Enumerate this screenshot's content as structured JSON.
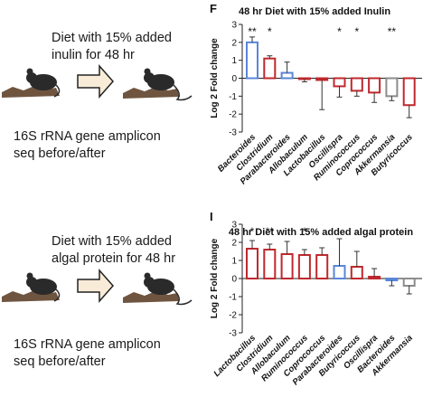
{
  "top": {
    "diet_lines": [
      "Diet with 15% added",
      "inulin for 48 hr"
    ],
    "seq_lines": [
      "16S rRNA gene amplicon",
      "seq before/after"
    ]
  },
  "bottom": {
    "diet_lines": [
      "Diet with 15% added",
      "algal protein for 48 hr"
    ],
    "seq_lines": [
      "16S rRNA gene amplicon",
      "seq before/after"
    ]
  },
  "colors": {
    "red": "#c0282d",
    "blue": "#5b86d8",
    "gray": "#8c8c8c",
    "arrow_fill": "#f8ecd8",
    "mouse": "#2a2a2a",
    "bedding": "#6f5540"
  },
  "chart_data": [
    {
      "panel_letter": "F",
      "type": "bar",
      "title": "48 hr Diet with 15% added Inulin",
      "ylabel": "Log 2 Fold change",
      "ylim": [
        -3,
        3
      ],
      "yticks": [
        -3,
        -2,
        -1,
        0,
        1,
        2,
        3
      ],
      "categories": [
        "Bacteroides",
        "Clostridium",
        "Parabacteroides",
        "Allobaculum",
        "Lactobacillus",
        "Oscillispra",
        "Ruminococcus",
        "Coprococcus",
        "Akkermansia",
        "Butyricoccus"
      ],
      "values": [
        2.0,
        1.1,
        0.3,
        -0.05,
        -0.1,
        -0.45,
        -0.7,
        -0.8,
        -1.0,
        -1.5
      ],
      "errors": [
        0.3,
        0.15,
        0.6,
        0.15,
        1.65,
        0.6,
        0.3,
        0.55,
        0.25,
        0.7
      ],
      "bar_colors": [
        "blue",
        "red",
        "blue",
        "red",
        "red",
        "red",
        "red",
        "red",
        "gray",
        "red"
      ],
      "significance": [
        "**",
        "*",
        "",
        "",
        "",
        "*",
        "*",
        "",
        "**",
        ""
      ]
    },
    {
      "panel_letter": "I",
      "type": "bar",
      "title": "48 hr Diet with 15% added algal protein",
      "ylabel": "Log 2 Fold change",
      "ylim": [
        -3,
        3
      ],
      "yticks": [
        -3,
        -2,
        -1,
        0,
        1,
        2,
        3
      ],
      "categories": [
        "Lactobacillus",
        "Clostridium",
        "Allobaculum",
        "Ruminococcus",
        "Coprococcus",
        "Parabacteroides",
        "Butyricoccus",
        "Oscillispra",
        "Bacteroides",
        "Akkermansia"
      ],
      "values": [
        1.65,
        1.6,
        1.35,
        1.3,
        1.3,
        0.7,
        0.65,
        0.1,
        -0.1,
        -0.4
      ],
      "errors": [
        0.45,
        0.3,
        0.7,
        0.3,
        0.4,
        1.5,
        0.85,
        0.45,
        0.3,
        0.45
      ],
      "bar_colors": [
        "red",
        "red",
        "red",
        "red",
        "red",
        "blue",
        "red",
        "red",
        "blue",
        "gray"
      ],
      "significance": [
        "*",
        "**",
        "",
        "*",
        "",
        "",
        "",
        "",
        "",
        ""
      ]
    }
  ]
}
